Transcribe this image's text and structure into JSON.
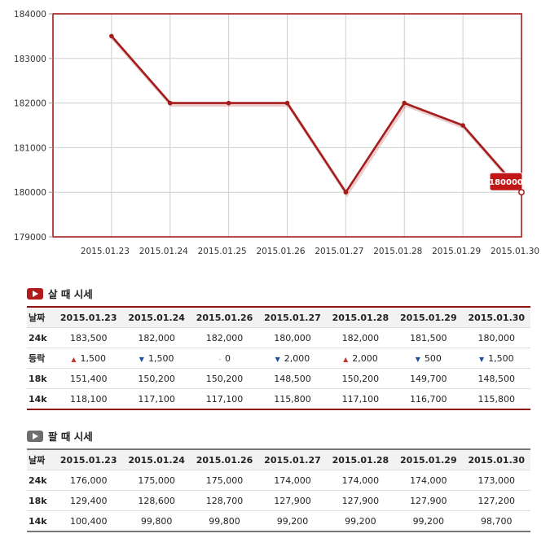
{
  "chart_data": {
    "type": "line",
    "categories": [
      "",
      "2015.01.23",
      "2015.01.24",
      "2015.01.25",
      "2015.01.26",
      "2015.01.27",
      "2015.01.28",
      "2015.01.29",
      "2015.01.30"
    ],
    "series": [
      {
        "values": [
          null,
          183500,
          182000,
          182000,
          182000,
          180000,
          182000,
          181500,
          180000
        ]
      }
    ],
    "ylim": [
      179000,
      184000
    ],
    "yticks": [
      "179000",
      "180000",
      "181000",
      "182000",
      "183000",
      "184000"
    ],
    "grid": true,
    "line_color": "#a51c1c",
    "tooltip": "180000"
  },
  "buy": {
    "title": "살 때 시세",
    "header": [
      "날짜",
      "2015.01.23",
      "2015.01.24",
      "2015.01.26",
      "2015.01.27",
      "2015.01.28",
      "2015.01.29",
      "2015.01.30"
    ],
    "rows": [
      {
        "label": "24k",
        "cells": [
          "183,500",
          "182,000",
          "182,000",
          "180,000",
          "182,000",
          "181,500",
          "180,000"
        ]
      },
      {
        "label": "등락",
        "cells": [
          "1,500",
          "1,500",
          "0",
          "2,000",
          "2,000",
          "500",
          "1,500"
        ],
        "arrows": [
          "up",
          "down",
          "same",
          "down",
          "up",
          "down",
          "down"
        ]
      },
      {
        "label": "18k",
        "cells": [
          "151,400",
          "150,200",
          "150,200",
          "148,500",
          "150,200",
          "149,700",
          "148,500"
        ]
      },
      {
        "label": "14k",
        "cells": [
          "118,100",
          "117,100",
          "117,100",
          "115,800",
          "117,100",
          "116,700",
          "115,800"
        ]
      }
    ]
  },
  "sell": {
    "title": "팔 때 시세",
    "header": [
      "날짜",
      "2015.01.23",
      "2015.01.24",
      "2015.01.26",
      "2015.01.27",
      "2015.01.28",
      "2015.01.29",
      "2015.01.30"
    ],
    "rows": [
      {
        "label": "24k",
        "cells": [
          "176,000",
          "175,000",
          "175,000",
          "174,000",
          "174,000",
          "174,000",
          "173,000"
        ]
      },
      {
        "label": "18k",
        "cells": [
          "129,400",
          "128,600",
          "128,700",
          "127,900",
          "127,900",
          "127,900",
          "127,200"
        ]
      },
      {
        "label": "14k",
        "cells": [
          "100,400",
          "99,800",
          "99,800",
          "99,200",
          "99,200",
          "99,200",
          "98,700"
        ]
      }
    ]
  }
}
